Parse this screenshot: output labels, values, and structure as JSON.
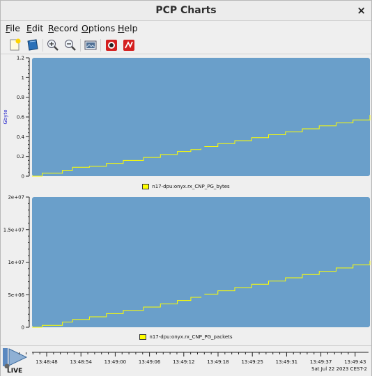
{
  "window": {
    "title": "PCP Charts",
    "close_glyph": "×"
  },
  "menu": [
    {
      "label": "File",
      "mnemonic": "F",
      "rest": "ile"
    },
    {
      "label": "Edit",
      "mnemonic": "E",
      "rest": "dit"
    },
    {
      "label": "Record",
      "mnemonic": "R",
      "rest": "ecord"
    },
    {
      "label": "Options",
      "mnemonic": "O",
      "rest": "ptions"
    },
    {
      "label": "Help",
      "mnemonic": "H",
      "rest": "elp"
    }
  ],
  "toolbar": [
    {
      "name": "new-chart-icon"
    },
    {
      "name": "open-view-icon"
    },
    {
      "name": "zoom-in-icon"
    },
    {
      "name": "zoom-out-icon"
    },
    {
      "name": "export-image-icon"
    },
    {
      "name": "record-icon"
    },
    {
      "name": "time-control-icon"
    }
  ],
  "colors": {
    "plot_bg": "#6a9fca",
    "trace": "#ffff00",
    "ylabel": "#2222cc"
  },
  "chart_data": [
    {
      "type": "line",
      "ylabel": "Gbyte",
      "ylim": [
        0,
        1.2
      ],
      "yticks": [
        "0",
        "0.2",
        "0.4",
        "0.6",
        "0.8",
        "1",
        "1.2"
      ],
      "legend": "n17-dpu:onyx.rx_CNP_PG_bytes",
      "series": [
        {
          "name": "n17-dpu:onyx.rx_CNP_PG_bytes",
          "x": [
            0,
            0.03,
            0.09,
            0.12,
            0.17,
            0.22,
            0.27,
            0.33,
            0.38,
            0.43,
            0.47,
            0.5,
            0.51,
            0.55,
            0.6,
            0.65,
            0.7,
            0.75,
            0.8,
            0.85,
            0.9,
            0.95,
            1.0
          ],
          "values": [
            0.0,
            0.03,
            0.06,
            0.09,
            0.1,
            0.13,
            0.16,
            0.19,
            0.22,
            0.25,
            0.27,
            0.28,
            0.3,
            0.33,
            0.36,
            0.39,
            0.42,
            0.45,
            0.48,
            0.51,
            0.54,
            0.57,
            0.62
          ]
        }
      ]
    },
    {
      "type": "line",
      "ylabel": "",
      "ylim": [
        0,
        20000000
      ],
      "yticks": [
        "0",
        "5e+06",
        "1e+07",
        "1.5e+07",
        "2e+07"
      ],
      "legend": "n17-dpu:onyx.rx_CNP_PG_packets",
      "series": [
        {
          "name": "n17-dpu:onyx.rx_CNP_PG_packets",
          "x": [
            0,
            0.03,
            0.09,
            0.12,
            0.17,
            0.22,
            0.27,
            0.33,
            0.38,
            0.43,
            0.47,
            0.5,
            0.51,
            0.55,
            0.6,
            0.65,
            0.7,
            0.75,
            0.8,
            0.85,
            0.9,
            0.95,
            1.0
          ],
          "values": [
            0,
            300000,
            800000,
            1200000,
            1600000,
            2100000,
            2600000,
            3100000,
            3600000,
            4100000,
            4600000,
            4700000,
            5100000,
            5600000,
            6100000,
            6600000,
            7100000,
            7600000,
            8100000,
            8600000,
            9100000,
            9600000,
            10200000
          ]
        }
      ]
    }
  ],
  "timeaxis": {
    "ticks": [
      "13:48:48",
      "13:48:54",
      "13:49:00",
      "13:49:06",
      "13:49:12",
      "13:49:18",
      "13:49:25",
      "13:49:31",
      "13:49:37",
      "13:49:43"
    ],
    "date": "Sat Jul 22 2023 CEST-2",
    "live_label": "LIVE"
  }
}
